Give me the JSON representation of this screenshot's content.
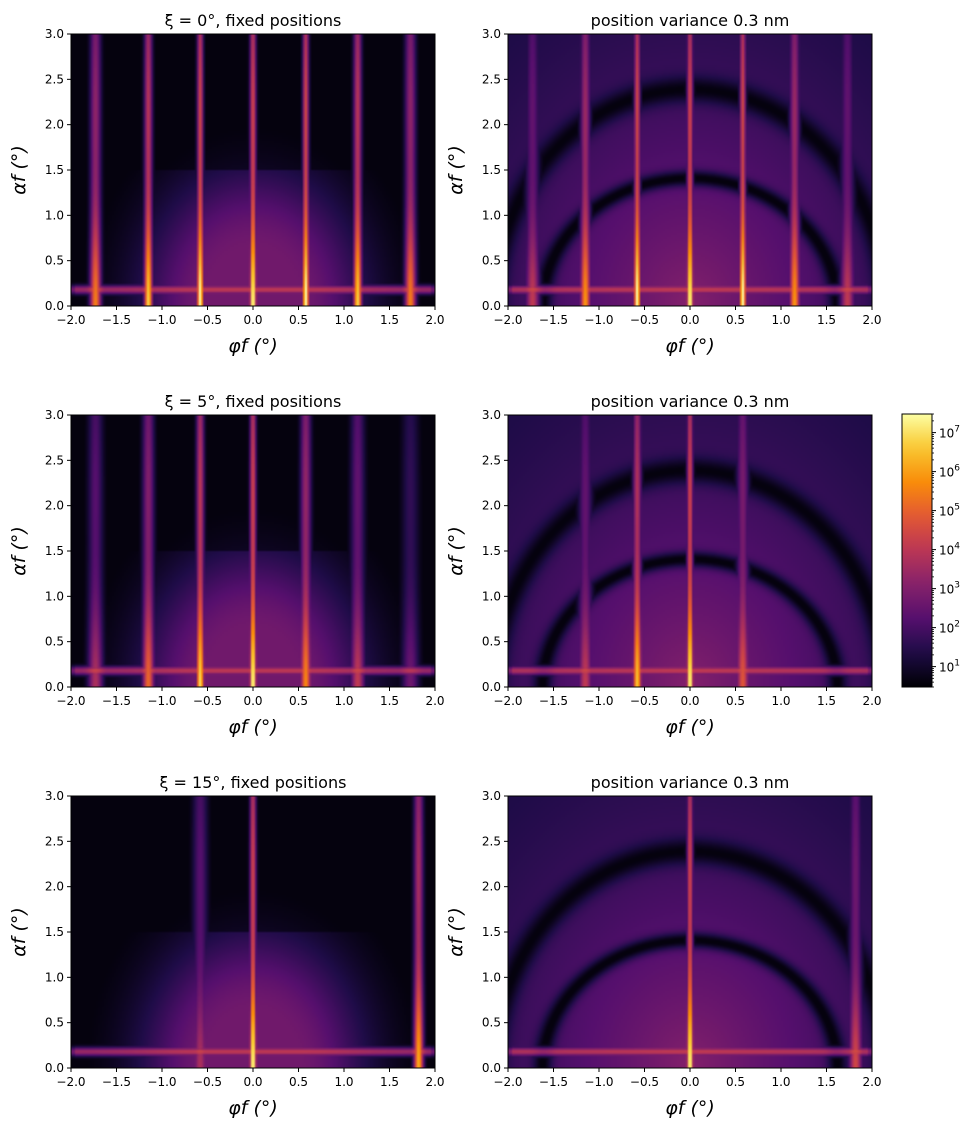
{
  "chart_data": [
    {
      "type": "heatmap",
      "title": "ξ = 0°, fixed positions",
      "xlabel": "φf (°)",
      "ylabel": "αf (°)",
      "xlim": [
        -2.0,
        2.0
      ],
      "ylim": [
        0.0,
        3.0
      ],
      "xticks": [
        "−2.0",
        "−1.5",
        "−1.0",
        "−0.5",
        "0.0",
        "0.5",
        "1.0",
        "1.5",
        "2.0"
      ],
      "yticks": [
        "0.0",
        "0.5",
        "1.0",
        "1.5",
        "2.0",
        "2.5",
        "3.0"
      ],
      "rods": [
        {
          "x": -1.73,
          "peak": 0.7
        },
        {
          "x": -1.15,
          "peak": 0.88
        },
        {
          "x": -0.58,
          "peak": 1.0
        },
        {
          "x": 0.0,
          "peak": 1.0
        },
        {
          "x": 0.58,
          "peak": 1.0
        },
        {
          "x": 1.15,
          "peak": 0.88
        },
        {
          "x": 1.73,
          "peak": 0.7
        }
      ],
      "horizon_alpha": 0.18,
      "halo": false
    },
    {
      "type": "heatmap",
      "title": "position variance 0.3 nm",
      "xlabel": "φf (°)",
      "ylabel": "αf (°)",
      "xlim": [
        -2.0,
        2.0
      ],
      "ylim": [
        0.0,
        3.0
      ],
      "xticks": [
        "−2.0",
        "−1.5",
        "−1.0",
        "−0.5",
        "0.0",
        "0.5",
        "1.0",
        "1.5",
        "2.0"
      ],
      "yticks": [
        "0.0",
        "0.5",
        "1.0",
        "1.5",
        "2.0",
        "2.5",
        "3.0"
      ],
      "rods": [
        {
          "x": -1.73,
          "peak": 0.5
        },
        {
          "x": -1.15,
          "peak": 0.75
        },
        {
          "x": -0.58,
          "peak": 1.0
        },
        {
          "x": 0.0,
          "peak": 1.0
        },
        {
          "x": 0.58,
          "peak": 1.0
        },
        {
          "x": 1.15,
          "peak": 0.75
        },
        {
          "x": 1.73,
          "peak": 0.5
        }
      ],
      "horizon_alpha": 0.18,
      "halo": true
    },
    {
      "type": "heatmap",
      "title": "ξ = 5°, fixed positions",
      "xlabel": "φf (°)",
      "ylabel": "αf (°)",
      "xlim": [
        -2.0,
        2.0
      ],
      "ylim": [
        0.0,
        3.0
      ],
      "xticks": [
        "−2.0",
        "−1.5",
        "−1.0",
        "−0.5",
        "0.0",
        "0.5",
        "1.0",
        "1.5",
        "2.0"
      ],
      "yticks": [
        "0.0",
        "0.5",
        "1.0",
        "1.5",
        "2.0",
        "2.5",
        "3.0"
      ],
      "rods": [
        {
          "x": -1.73,
          "peak": 0.45
        },
        {
          "x": -1.15,
          "peak": 0.65
        },
        {
          "x": -0.58,
          "peak": 0.9
        },
        {
          "x": 0.0,
          "peak": 1.0
        },
        {
          "x": 0.58,
          "peak": 0.72
        },
        {
          "x": 1.15,
          "peak": 0.5
        },
        {
          "x": 1.73,
          "peak": 0.3
        }
      ],
      "horizon_alpha": 0.18,
      "halo": false
    },
    {
      "type": "heatmap",
      "title": "position variance 0.3 nm",
      "xlabel": "φf (°)",
      "ylabel": "αf (°)",
      "xlim": [
        -2.0,
        2.0
      ],
      "ylim": [
        0.0,
        3.0
      ],
      "xticks": [
        "−2.0",
        "−1.5",
        "−1.0",
        "−0.5",
        "0.0",
        "0.5",
        "1.0",
        "1.5",
        "2.0"
      ],
      "yticks": [
        "0.0",
        "0.5",
        "1.0",
        "1.5",
        "2.0",
        "2.5",
        "3.0"
      ],
      "rods": [
        {
          "x": -1.15,
          "peak": 0.5
        },
        {
          "x": -0.58,
          "peak": 0.85
        },
        {
          "x": 0.0,
          "peak": 1.0
        },
        {
          "x": 0.58,
          "peak": 0.6
        }
      ],
      "horizon_alpha": 0.18,
      "halo": true
    },
    {
      "type": "heatmap",
      "title": "ξ = 15°, fixed positions",
      "xlabel": "φf (°)",
      "ylabel": "αf (°)",
      "xlim": [
        -2.0,
        2.0
      ],
      "ylim": [
        0.0,
        3.0
      ],
      "xticks": [
        "−2.0",
        "−1.5",
        "−1.0",
        "−0.5",
        "0.0",
        "0.5",
        "1.0",
        "1.5",
        "2.0"
      ],
      "yticks": [
        "0.0",
        "0.5",
        "1.0",
        "1.5",
        "2.0",
        "2.5",
        "3.0"
      ],
      "rods": [
        {
          "x": -0.58,
          "peak": 0.45
        },
        {
          "x": 0.0,
          "peak": 1.0
        },
        {
          "x": 1.82,
          "peak": 0.8
        }
      ],
      "horizon_alpha": 0.18,
      "halo": false
    },
    {
      "type": "heatmap",
      "title": "position variance 0.3 nm",
      "xlabel": "φf (°)",
      "ylabel": "αf (°)",
      "xlim": [
        -2.0,
        2.0
      ],
      "ylim": [
        0.0,
        3.0
      ],
      "xticks": [
        "−2.0",
        "−1.5",
        "−1.0",
        "−0.5",
        "0.0",
        "0.5",
        "1.0",
        "1.5",
        "2.0"
      ],
      "yticks": [
        "0.0",
        "0.5",
        "1.0",
        "1.5",
        "2.0",
        "2.5",
        "3.0"
      ],
      "rods": [
        {
          "x": 0.0,
          "peak": 1.0
        },
        {
          "x": 1.82,
          "peak": 0.55
        }
      ],
      "horizon_alpha": 0.18,
      "halo": true
    }
  ],
  "colorbar": {
    "scale": "log",
    "range": [
      3,
      30000000
    ],
    "ticks": [
      {
        "value": 10,
        "base": "10",
        "exp": "1"
      },
      {
        "value": 100,
        "base": "10",
        "exp": "2"
      },
      {
        "value": 1000,
        "base": "10",
        "exp": "3"
      },
      {
        "value": 10000,
        "base": "10",
        "exp": "4"
      },
      {
        "value": 100000,
        "base": "10",
        "exp": "5"
      },
      {
        "value": 1000000,
        "base": "10",
        "exp": "6"
      },
      {
        "value": 10000000,
        "base": "10",
        "exp": "7"
      }
    ],
    "colormap": "inferno"
  }
}
